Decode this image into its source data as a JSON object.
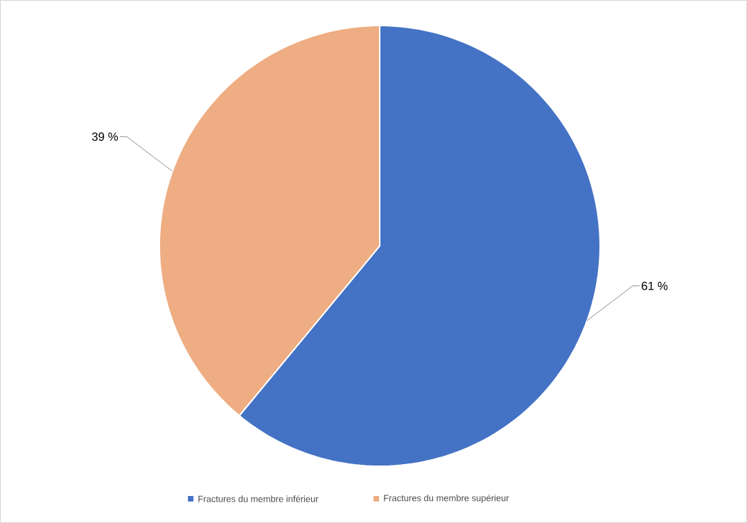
{
  "chart_data": {
    "type": "pie",
    "categories": [
      "Fractures du membre inférieur",
      "Fractures du membre supérieur"
    ],
    "values": [
      61,
      39
    ],
    "colors": [
      "#4472c4",
      "#eead82"
    ],
    "value_labels": [
      "61 %",
      "39 %"
    ],
    "legend": "bottom"
  }
}
